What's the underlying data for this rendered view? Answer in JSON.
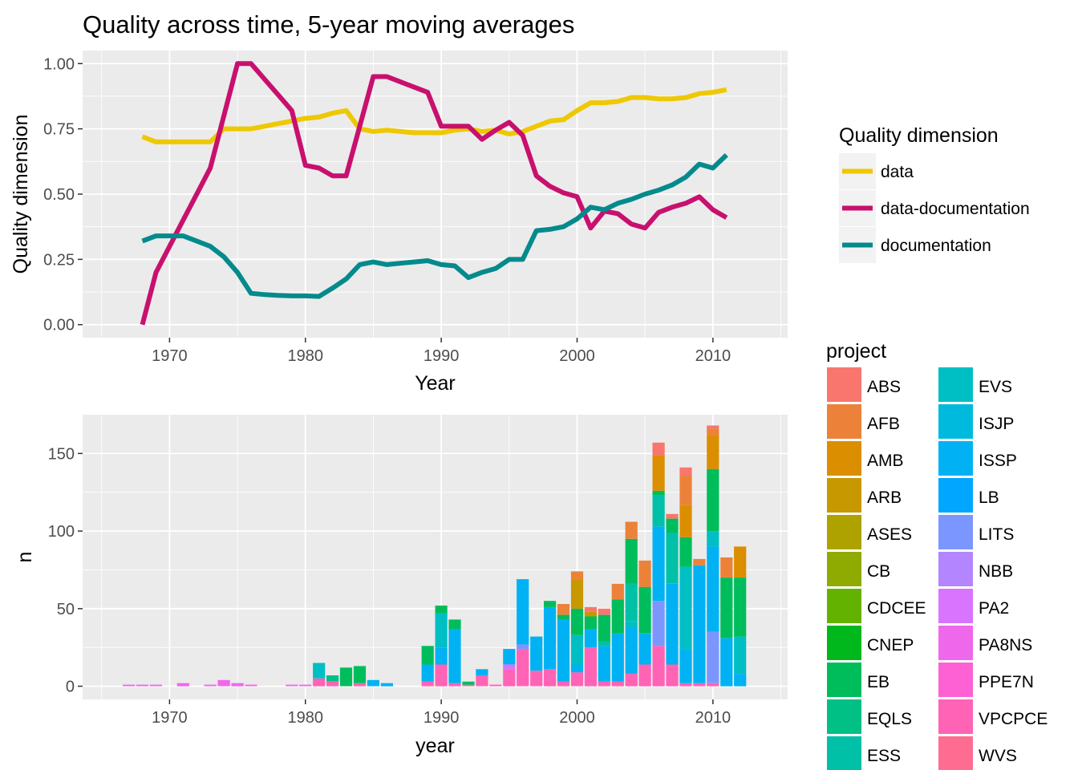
{
  "page_title": "Quality across time, 5-year moving averages",
  "chart_data": [
    {
      "type": "line",
      "title": "Quality across time, 5-year moving averages",
      "xlabel": "Year",
      "ylabel": "Quality dimension",
      "xlim": [
        1963.6,
        2015.5
      ],
      "ylim": [
        -0.05,
        1.05
      ],
      "x_ticks": [
        1970,
        1980,
        1990,
        2000,
        2010
      ],
      "x_tick_labels": [
        "1970",
        "1980",
        "1990",
        "2000",
        "2010"
      ],
      "y_ticks": [
        0,
        0.25,
        0.5,
        0.75,
        1.0
      ],
      "y_tick_labels": [
        "0.00",
        "0.25",
        "0.50",
        "0.75",
        "1.00"
      ],
      "legend_title": "Quality dimension",
      "legend_position": "right",
      "series": [
        {
          "name": "data",
          "color": "#EEC800",
          "x": [
            1968,
            1969,
            1970,
            1971,
            1972,
            1973,
            1974,
            1975,
            1976,
            1977,
            1978,
            1979,
            1980,
            1981,
            1982,
            1983,
            1984,
            1985,
            1986,
            1987,
            1988,
            1989,
            1990,
            1991,
            1992,
            1993,
            1994,
            1995,
            1996,
            1997,
            1998,
            1999,
            2000,
            2001,
            2002,
            2003,
            2004,
            2005,
            2006,
            2007,
            2008,
            2009,
            2010,
            2011
          ],
          "y": [
            0.72,
            0.7,
            0.7,
            0.7,
            0.7,
            0.7,
            0.75,
            0.75,
            0.75,
            0.76,
            0.77,
            0.78,
            0.79,
            0.795,
            0.81,
            0.82,
            0.75,
            0.74,
            0.745,
            0.74,
            0.735,
            0.735,
            0.735,
            0.745,
            0.75,
            0.74,
            0.745,
            0.73,
            0.74,
            0.76,
            0.78,
            0.785,
            0.82,
            0.85,
            0.85,
            0.855,
            0.87,
            0.87,
            0.865,
            0.865,
            0.87,
            0.885,
            0.89,
            0.9
          ]
        },
        {
          "name": "data-documentation",
          "color": "#C8106E",
          "x": [
            1968,
            1969,
            1970,
            1971,
            1972,
            1973,
            1974,
            1975,
            1976,
            1977,
            1978,
            1979,
            1980,
            1981,
            1982,
            1983,
            1984,
            1985,
            1986,
            1987,
            1988,
            1989,
            1990,
            1991,
            1992,
            1993,
            1994,
            1995,
            1996,
            1997,
            1998,
            1999,
            2000,
            2001,
            2002,
            2003,
            2004,
            2005,
            2006,
            2007,
            2008,
            2009,
            2010,
            2011
          ],
          "y": [
            0.0,
            0.2,
            0.3,
            0.4,
            0.5,
            0.6,
            0.8,
            1.0,
            1.0,
            0.94,
            0.88,
            0.82,
            0.61,
            0.6,
            0.57,
            0.57,
            0.76,
            0.95,
            0.95,
            0.93,
            0.91,
            0.89,
            0.76,
            0.76,
            0.76,
            0.71,
            0.745,
            0.775,
            0.725,
            0.57,
            0.53,
            0.505,
            0.49,
            0.37,
            0.435,
            0.425,
            0.385,
            0.37,
            0.43,
            0.45,
            0.465,
            0.49,
            0.44,
            0.41
          ]
        },
        {
          "name": "documentation",
          "color": "#048A8C",
          "x": [
            1968,
            1969,
            1970,
            1971,
            1972,
            1973,
            1974,
            1975,
            1976,
            1977,
            1978,
            1979,
            1980,
            1981,
            1982,
            1983,
            1984,
            1985,
            1986,
            1987,
            1988,
            1989,
            1990,
            1991,
            1992,
            1993,
            1994,
            1995,
            1996,
            1997,
            1998,
            1999,
            2000,
            2001,
            2002,
            2003,
            2004,
            2005,
            2006,
            2007,
            2008,
            2009,
            2010,
            2011
          ],
          "y": [
            0.32,
            0.34,
            0.34,
            0.34,
            0.32,
            0.3,
            0.26,
            0.2,
            0.12,
            0.115,
            0.112,
            0.11,
            0.11,
            0.108,
            0.14,
            0.175,
            0.23,
            0.24,
            0.23,
            0.235,
            0.24,
            0.245,
            0.23,
            0.225,
            0.18,
            0.2,
            0.215,
            0.25,
            0.25,
            0.36,
            0.365,
            0.375,
            0.405,
            0.45,
            0.44,
            0.465,
            0.48,
            0.5,
            0.515,
            0.535,
            0.565,
            0.615,
            0.6,
            0.65
          ]
        }
      ]
    },
    {
      "type": "bar",
      "stacked": true,
      "xlabel": "year",
      "ylabel": "n",
      "xlim": [
        1963.6,
        2015.5
      ],
      "ylim": [
        -8.5,
        175
      ],
      "x_ticks": [
        1970,
        1980,
        1990,
        2000,
        2010
      ],
      "x_tick_labels": [
        "1970",
        "1980",
        "1990",
        "2000",
        "2010"
      ],
      "y_ticks": [
        0,
        50,
        100,
        150
      ],
      "y_tick_labels": [
        "0",
        "50",
        "100",
        "150"
      ],
      "legend_title": "project",
      "legend_position": "right",
      "projects": [
        {
          "name": "ABS",
          "color": "#F8766D"
        },
        {
          "name": "AFB",
          "color": "#EC8239"
        },
        {
          "name": "AMB",
          "color": "#DB8E00"
        },
        {
          "name": "ARB",
          "color": "#C79800"
        },
        {
          "name": "ASES",
          "color": "#AEA200"
        },
        {
          "name": "CB",
          "color": "#8FAA00"
        },
        {
          "name": "CDCEE",
          "color": "#64B200"
        },
        {
          "name": "CNEP",
          "color": "#00B81B"
        },
        {
          "name": "EB",
          "color": "#00BD5C"
        },
        {
          "name": "EQLS",
          "color": "#00C085"
        },
        {
          "name": "ESS",
          "color": "#00C1A7"
        },
        {
          "name": "EVS",
          "color": "#00BFC4"
        },
        {
          "name": "ISJP",
          "color": "#00BADE"
        },
        {
          "name": "ISSP",
          "color": "#00B2F3"
        },
        {
          "name": "LB",
          "color": "#00A6FF"
        },
        {
          "name": "LITS",
          "color": "#7C96FF"
        },
        {
          "name": "NBB",
          "color": "#B385FF"
        },
        {
          "name": "PA2",
          "color": "#D874FD"
        },
        {
          "name": "PA8NS",
          "color": "#EF67EB"
        },
        {
          "name": "PPE7N",
          "color": "#FD61D3"
        },
        {
          "name": "VPCPCE",
          "color": "#FF63B6"
        },
        {
          "name": "WVS",
          "color": "#FF6C91"
        }
      ],
      "bars": [
        {
          "year": 1967,
          "segments": [
            [
              "PA8NS",
              1
            ]
          ]
        },
        {
          "year": 1968,
          "segments": [
            [
              "PA8NS",
              1
            ]
          ]
        },
        {
          "year": 1969,
          "segments": [
            [
              "PA8NS",
              1
            ]
          ]
        },
        {
          "year": 1971,
          "segments": [
            [
              "PA8NS",
              2
            ]
          ]
        },
        {
          "year": 1973,
          "segments": [
            [
              "PA8NS",
              1
            ]
          ]
        },
        {
          "year": 1974,
          "segments": [
            [
              "PA8NS",
              4
            ]
          ]
        },
        {
          "year": 1975,
          "segments": [
            [
              "PA8NS",
              2
            ]
          ]
        },
        {
          "year": 1976,
          "segments": [
            [
              "PA8NS",
              1
            ]
          ]
        },
        {
          "year": 1979,
          "segments": [
            [
              "PA8NS",
              1
            ]
          ]
        },
        {
          "year": 1980,
          "segments": [
            [
              "PA8NS",
              1
            ]
          ]
        },
        {
          "year": 1981,
          "segments": [
            [
              "VPCPCE",
              5
            ],
            [
              "EVS",
              10
            ]
          ]
        },
        {
          "year": 1982,
          "segments": [
            [
              "VPCPCE",
              3
            ],
            [
              "EQLS",
              4
            ]
          ]
        },
        {
          "year": 1983,
          "segments": [
            [
              "EB",
              12
            ]
          ]
        },
        {
          "year": 1984,
          "segments": [
            [
              "VPCPCE",
              2
            ],
            [
              "EB",
              11
            ]
          ]
        },
        {
          "year": 1985,
          "segments": [
            [
              "ISSP",
              4
            ]
          ]
        },
        {
          "year": 1986,
          "segments": [
            [
              "ISSP",
              2
            ]
          ]
        },
        {
          "year": 1989,
          "segments": [
            [
              "VPCPCE",
              3
            ],
            [
              "ISSP",
              11
            ],
            [
              "EB",
              12
            ]
          ]
        },
        {
          "year": 1990,
          "segments": [
            [
              "VPCPCE",
              14
            ],
            [
              "ISSP",
              11
            ],
            [
              "EVS",
              22
            ],
            [
              "EB",
              5
            ]
          ]
        },
        {
          "year": 1991,
          "segments": [
            [
              "VPCPCE",
              2
            ],
            [
              "ISSP",
              35
            ],
            [
              "EB",
              6
            ]
          ]
        },
        {
          "year": 1992,
          "segments": [
            [
              "VPCPCE",
              1
            ],
            [
              "EB",
              2
            ]
          ]
        },
        {
          "year": 1993,
          "segments": [
            [
              "VPCPCE",
              7
            ],
            [
              "ISSP",
              4
            ]
          ]
        },
        {
          "year": 1994,
          "segments": [
            [
              "VPCPCE",
              1
            ]
          ]
        },
        {
          "year": 1995,
          "segments": [
            [
              "VPCPCE",
              11
            ],
            [
              "PA2",
              3
            ],
            [
              "ISSP",
              10
            ]
          ]
        },
        {
          "year": 1996,
          "segments": [
            [
              "VPCPCE",
              24
            ],
            [
              "LITS",
              3
            ],
            [
              "ISSP",
              42
            ]
          ]
        },
        {
          "year": 1997,
          "segments": [
            [
              "VPCPCE",
              10
            ],
            [
              "ISSP",
              22
            ]
          ]
        },
        {
          "year": 1998,
          "segments": [
            [
              "VPCPCE",
              11
            ],
            [
              "ISSP",
              40
            ],
            [
              "EB",
              4
            ]
          ]
        },
        {
          "year": 1999,
          "segments": [
            [
              "VPCPCE",
              3
            ],
            [
              "ISSP",
              40
            ],
            [
              "EB",
              3
            ],
            [
              "AFB",
              7
            ]
          ]
        },
        {
          "year": 2000,
          "segments": [
            [
              "VPCPCE",
              9
            ],
            [
              "ISSP",
              5
            ],
            [
              "EVS",
              19
            ],
            [
              "EB",
              17
            ],
            [
              "ARB",
              19
            ],
            [
              "AFB",
              5
            ]
          ]
        },
        {
          "year": 2001,
          "segments": [
            [
              "VPCPCE",
              25
            ],
            [
              "ISSP",
              12
            ],
            [
              "EB",
              8
            ],
            [
              "ARB",
              3
            ],
            [
              "ABS",
              3
            ]
          ]
        },
        {
          "year": 2002,
          "segments": [
            [
              "VPCPCE",
              3
            ],
            [
              "ISSP",
              23
            ],
            [
              "ESS",
              3
            ],
            [
              "EB",
              17
            ],
            [
              "ABS",
              4
            ]
          ]
        },
        {
          "year": 2003,
          "segments": [
            [
              "VPCPCE",
              3
            ],
            [
              "ISSP",
              31
            ],
            [
              "EB",
              22
            ],
            [
              "AFB",
              10
            ]
          ]
        },
        {
          "year": 2004,
          "segments": [
            [
              "VPCPCE",
              8
            ],
            [
              "ISSP",
              30
            ],
            [
              "EVS",
              4
            ],
            [
              "ESS",
              24
            ],
            [
              "EB",
              29
            ],
            [
              "AFB",
              11
            ]
          ]
        },
        {
          "year": 2005,
          "segments": [
            [
              "VPCPCE",
              14
            ],
            [
              "ISSP",
              20
            ],
            [
              "EB",
              30
            ],
            [
              "AFB",
              17
            ]
          ]
        },
        {
          "year": 2006,
          "segments": [
            [
              "VPCPCE",
              26
            ],
            [
              "LITS",
              29
            ],
            [
              "ISSP",
              48
            ],
            [
              "ESS",
              20
            ],
            [
              "EB",
              3
            ],
            [
              "AMB",
              23
            ],
            [
              "ABS",
              8
            ]
          ]
        },
        {
          "year": 2007,
          "segments": [
            [
              "VPCPCE",
              14
            ],
            [
              "ISSP",
              52
            ],
            [
              "ESS",
              33
            ],
            [
              "EB",
              9
            ],
            [
              "ABS",
              3
            ]
          ]
        },
        {
          "year": 2008,
          "segments": [
            [
              "VPCPCE",
              2
            ],
            [
              "ISSP",
              22
            ],
            [
              "EVS",
              53
            ],
            [
              "EB",
              19
            ],
            [
              "AMB",
              21
            ],
            [
              "AFB",
              19
            ],
            [
              "ABS",
              5
            ]
          ]
        },
        {
          "year": 2009,
          "segments": [
            [
              "VPCPCE",
              2
            ],
            [
              "ISSP",
              76
            ],
            [
              "AFB",
              4
            ]
          ]
        },
        {
          "year": 2010,
          "segments": [
            [
              "VPCPCE",
              2
            ],
            [
              "LITS",
              33
            ],
            [
              "ISSP",
              55
            ],
            [
              "EVS",
              10
            ],
            [
              "EB",
              40
            ],
            [
              "AMB",
              22
            ],
            [
              "AFB",
              4
            ],
            [
              "ABS",
              2
            ]
          ]
        },
        {
          "year": 2011,
          "segments": [
            [
              "ISSP",
              31
            ],
            [
              "EB",
              39
            ],
            [
              "AFB",
              13
            ]
          ]
        },
        {
          "year": 2012,
          "segments": [
            [
              "ISSP",
              8
            ],
            [
              "EVS",
              24
            ],
            [
              "EB",
              38
            ],
            [
              "AMB",
              20
            ]
          ]
        }
      ]
    }
  ]
}
